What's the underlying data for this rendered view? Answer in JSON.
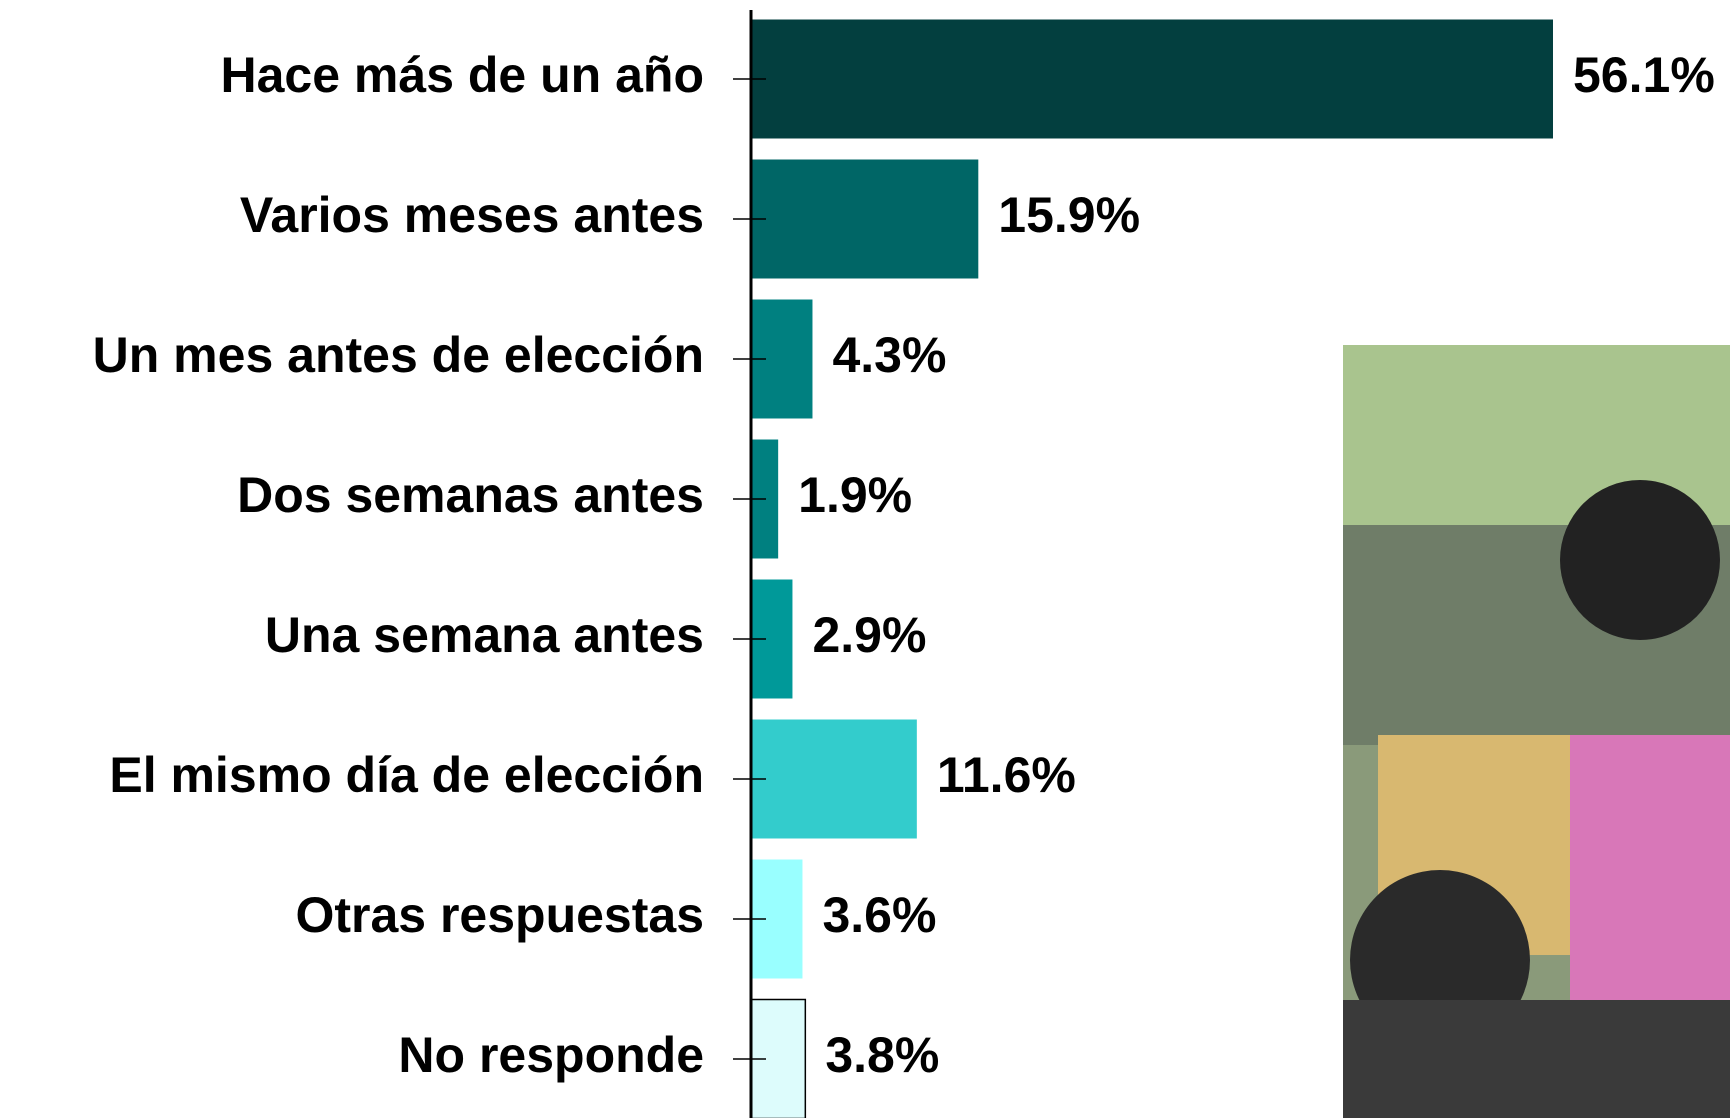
{
  "chart_data": {
    "type": "bar",
    "categories": [
      "Hace más de un año",
      "Varios meses antes",
      "Un mes antes de elección",
      "Dos semanas antes",
      "Una semana antes",
      "El mismo día de elección",
      "Otras respuestas",
      "No responde"
    ],
    "values": [
      56.1,
      15.9,
      4.3,
      1.9,
      2.9,
      11.6,
      3.6,
      3.8
    ],
    "value_labels": [
      "56.1%",
      "15.9%",
      "4.3%",
      "1.9%",
      "2.9%",
      "11.6%",
      "3.6%",
      "3.8%"
    ],
    "colors": [
      "#033f3f",
      "#006666",
      "#008080",
      "#008080",
      "#009999",
      "#33cccc",
      "#99ffff",
      "#ddfcfc"
    ]
  }
}
